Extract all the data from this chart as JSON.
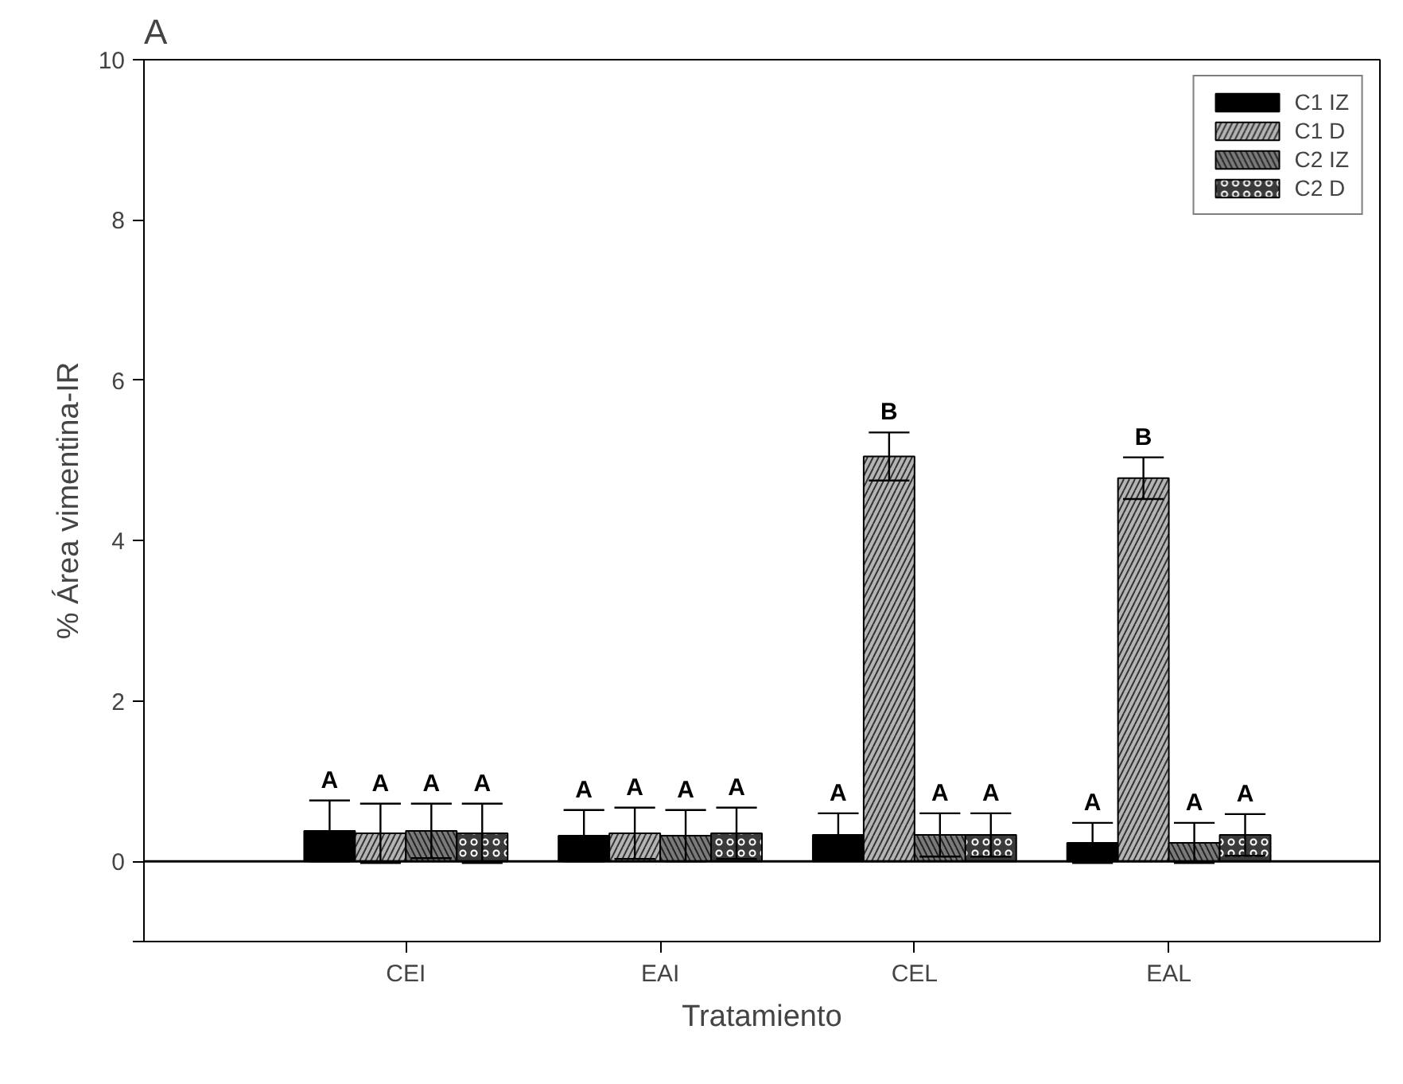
{
  "chart_data": {
    "type": "bar",
    "title": "A",
    "xlabel": "Tratamiento",
    "ylabel": "% Área vimentina-IR",
    "categories": [
      "CEI",
      "EAI",
      "CEL",
      "EAL"
    ],
    "series": [
      {
        "name": "C1 IZ",
        "color": "#000000",
        "values": [
          0.38,
          0.32,
          0.33,
          0.23
        ],
        "errors": [
          0.38,
          0.32,
          0.27,
          0.25
        ],
        "value_labels": [
          "A",
          "A",
          "A",
          "A"
        ]
      },
      {
        "name": "C1 D",
        "color": "#b4b4b4",
        "values": [
          0.35,
          0.35,
          5.05,
          4.78
        ],
        "errors": [
          0.37,
          0.32,
          0.3,
          0.26
        ],
        "value_labels": [
          "A",
          "A",
          "B",
          "B"
        ]
      },
      {
        "name": "C2 IZ",
        "color": "#7a7a7a",
        "values": [
          0.38,
          0.32,
          0.33,
          0.23
        ],
        "errors": [
          0.34,
          0.32,
          0.27,
          0.25
        ],
        "value_labels": [
          "A",
          "A",
          "A",
          "A"
        ]
      },
      {
        "name": "C2 D",
        "color": "#3a3a3a",
        "values": [
          0.35,
          0.35,
          0.33,
          0.33
        ],
        "errors": [
          0.37,
          0.32,
          0.27,
          0.26
        ],
        "value_labels": [
          "A",
          "A",
          "A",
          "A"
        ]
      }
    ],
    "ylim": [
      -1,
      10
    ],
    "yticks": [
      {
        "value": -1,
        "label": null
      },
      0,
      2,
      4,
      6,
      8,
      10
    ],
    "ref_lines": [
      {
        "axis": "y",
        "value": 0,
        "label": null,
        "color": "#000000"
      }
    ],
    "grid": false,
    "legend": "top right"
  }
}
